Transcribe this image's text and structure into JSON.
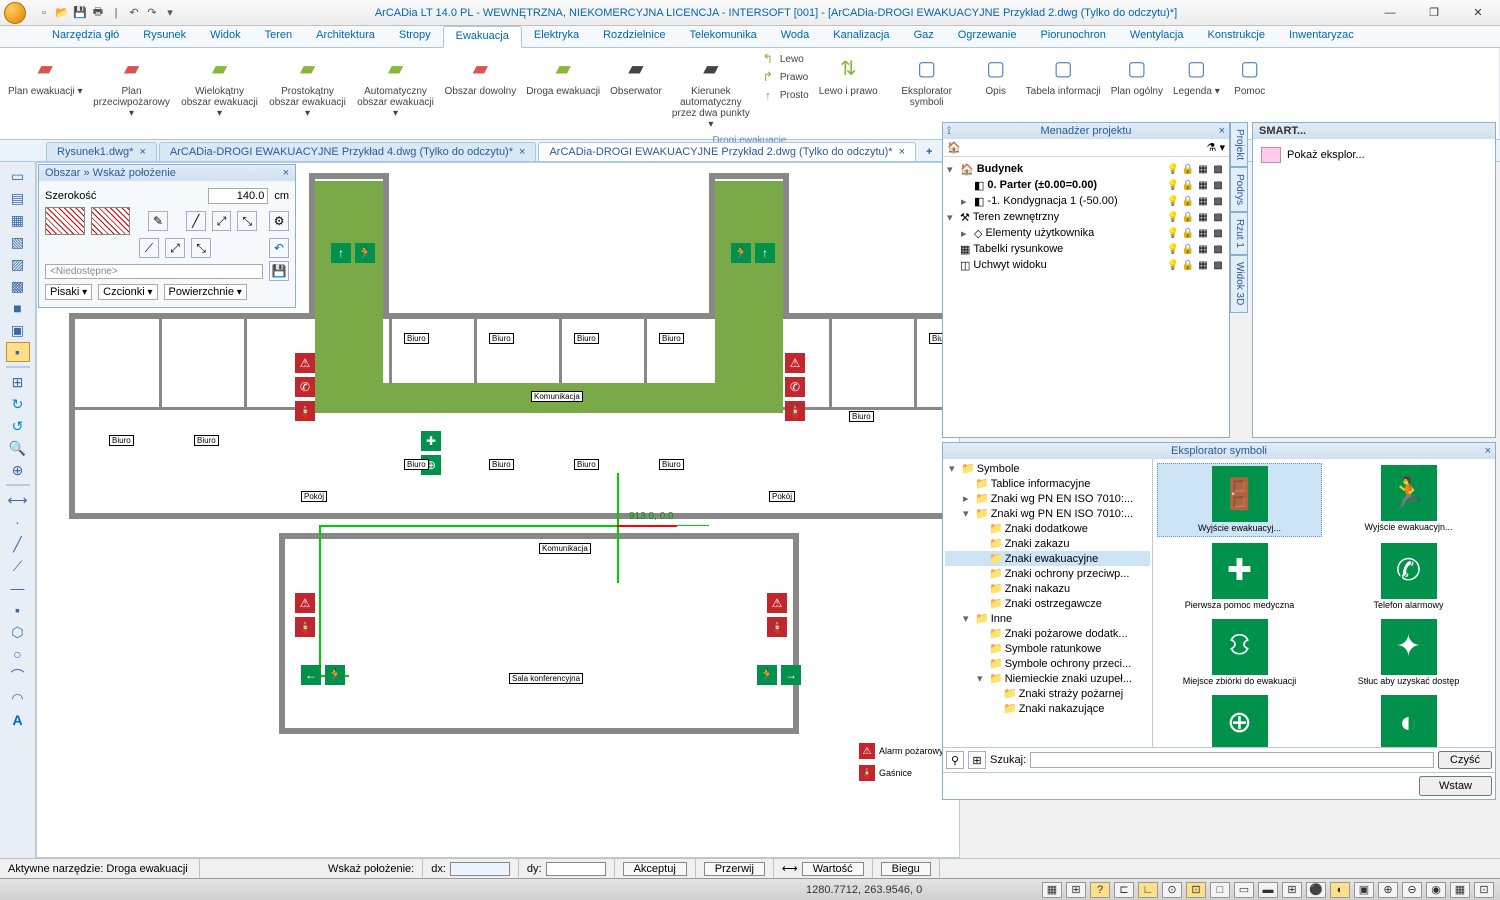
{
  "title": "ArCADia LT 14.0 PL - WEWNĘTRZNA, NIEKOMERCYJNA LICENCJA - INTERSOFT [001] - [ArCADia-DROGI EWAKUACYJNE Przykład 2.dwg (Tylko do odczytu)*]",
  "ribbon_tabs": [
    "Narzędzia głó",
    "Rysunek",
    "Widok",
    "Teren",
    "Architektura",
    "Stropy",
    "Ewakuacja",
    "Elektryka",
    "Rozdzielnice",
    "Telekomunika",
    "Woda",
    "Kanalizacja",
    "Gaz",
    "Ogrzewanie",
    "Piorunochron",
    "Wentylacja",
    "Konstrukcje",
    "Inwentaryzac"
  ],
  "ribbon_active": 6,
  "ribbon_group_label": "Drogi ewakuacje",
  "ribbon_buttons": [
    {
      "label": "Plan ewakuacji ▾",
      "color": "#d9534f"
    },
    {
      "label": "Plan przeciwpożarowy ▾",
      "color": "#d9534f"
    },
    {
      "label": "Wielokątny obszar ewakuacji ▾",
      "color": "#8ab73a"
    },
    {
      "label": "Prostokątny obszar ewakuacji ▾",
      "color": "#8ab73a"
    },
    {
      "label": "Automatyczny obszar ewakuacji ▾",
      "color": "#8ab73a"
    },
    {
      "label": "Obszar dowolny",
      "color": "#d9534f"
    },
    {
      "label": "Droga ewakuacji",
      "color": "#8ab73a"
    },
    {
      "label": "Obserwator",
      "color": "#444"
    },
    {
      "label": "Kierunek automatyczny przez dwa punkty ▾",
      "color": "#444"
    }
  ],
  "ribbon_dir": {
    "lewo": "Lewo",
    "prawo": "Prawo",
    "prosto": "Prosto",
    "lip": "Lewo i prawo"
  },
  "ribbon_right": [
    {
      "label": "Eksplorator symboli"
    },
    {
      "label": "Opis"
    },
    {
      "label": "Tabela informacji"
    },
    {
      "label": "Plan ogólny"
    },
    {
      "label": "Legenda ▾"
    },
    {
      "label": "Pomoc"
    }
  ],
  "doc_tabs": [
    {
      "label": "Rysunek1.dwg*",
      "active": false
    },
    {
      "label": "ArCADia-DROGI EWAKUACYJNE Przykład 4.dwg (Tylko do odczytu)*",
      "active": false
    },
    {
      "label": "ArCADia-DROGI EWAKUACYJNE Przykład 2.dwg (Tylko do odczytu)*",
      "active": true
    }
  ],
  "obszar": {
    "title": "Obszar » Wskaż położenie",
    "szerokosc_label": "Szerokość",
    "szerokosc_value": "140.0",
    "szerokosc_unit": "cm",
    "niedostepne": "<Niedostępne>",
    "pisaki": "Pisaki",
    "czcionki": "Czcionki",
    "powierzchnie": "Powierzchnie"
  },
  "plan": {
    "rooms": [
      "Biuro",
      "Biuro",
      "Biuro",
      "Biuro",
      "Biuro",
      "Biuro",
      "Biuro",
      "Biuro",
      "Biuro",
      "Biuro",
      "Biuro",
      "Biuro"
    ],
    "center_label": "Komunikacja",
    "pokoj": "Pokój",
    "sala": "Sala konferencyjna",
    "coords": "913.0, 0.0",
    "legend": {
      "alarm": "Alarm pożarowy",
      "gasnica": "Gaśnice"
    },
    "evac_color": "#7aa948",
    "sign_color": "#00924a"
  },
  "manager": {
    "title": "Menadżer projektu",
    "nodes": [
      {
        "indent": 0,
        "exp": "▾",
        "icon": "🏠",
        "label": "Budynek",
        "bold": true
      },
      {
        "indent": 1,
        "exp": "",
        "icon": "◧",
        "label": "0. Parter (±0.00=0.00)",
        "bold": true
      },
      {
        "indent": 1,
        "exp": "▸",
        "icon": "◧",
        "label": "-1. Kondygnacja 1 (-50.00)"
      },
      {
        "indent": 0,
        "exp": "▾",
        "icon": "⚒",
        "label": "Teren zewnętrzny"
      },
      {
        "indent": 1,
        "exp": "▸",
        "icon": "◇",
        "label": "Elementy użytkownika"
      },
      {
        "indent": 0,
        "exp": "",
        "icon": "▦",
        "label": "Tabelki rysunkowe"
      },
      {
        "indent": 0,
        "exp": "",
        "icon": "◫",
        "label": "Uchwyt widoku"
      }
    ]
  },
  "side_tabs": [
    "Projekt",
    "Podrys",
    "Rzut 1",
    "Widok 3D"
  ],
  "smart": {
    "title": "SMART...",
    "item": "Pokaż eksplor..."
  },
  "symex": {
    "title": "Eksplorator symboli",
    "tree": [
      {
        "indent": 0,
        "exp": "▾",
        "label": "Symbole"
      },
      {
        "indent": 1,
        "exp": "",
        "label": "Tablice informacyjne"
      },
      {
        "indent": 1,
        "exp": "▸",
        "label": "Znaki wg PN EN ISO 7010:..."
      },
      {
        "indent": 1,
        "exp": "▾",
        "label": "Znaki wg PN EN ISO 7010:..."
      },
      {
        "indent": 2,
        "exp": "",
        "label": "Znaki dodatkowe"
      },
      {
        "indent": 2,
        "exp": "",
        "label": "Znaki zakazu"
      },
      {
        "indent": 2,
        "exp": "",
        "label": "Znaki ewakuacyjne",
        "sel": true
      },
      {
        "indent": 2,
        "exp": "",
        "label": "Znaki ochrony przeciwp..."
      },
      {
        "indent": 2,
        "exp": "",
        "label": "Znaki nakazu"
      },
      {
        "indent": 2,
        "exp": "",
        "label": "Znaki ostrzegawcze"
      },
      {
        "indent": 1,
        "exp": "▾",
        "label": "Inne"
      },
      {
        "indent": 2,
        "exp": "",
        "label": "Znaki pożarowe dodatk..."
      },
      {
        "indent": 2,
        "exp": "",
        "label": "Symbole ratunkowe"
      },
      {
        "indent": 2,
        "exp": "",
        "label": "Symbole ochrony przeci..."
      },
      {
        "indent": 2,
        "exp": "▾",
        "label": "Niemieckie znaki uzupeł..."
      },
      {
        "indent": 3,
        "exp": "",
        "label": "Znaki straży pożarnej"
      },
      {
        "indent": 3,
        "exp": "",
        "label": "Znaki nakazujące"
      }
    ],
    "symbols": [
      {
        "glyph": "🚪",
        "label": "Wyjście ewakuacyj...",
        "sel": true
      },
      {
        "glyph": "🏃",
        "label": "Wyjście ewakuacyjn..."
      },
      {
        "glyph": "✚",
        "label": "Pierwsza pomoc medyczna"
      },
      {
        "glyph": "✆",
        "label": "Telefon alarmowy"
      },
      {
        "glyph": "⛻",
        "label": "Miejsce zbiórki do ewakuacji"
      },
      {
        "glyph": "✦",
        "label": "Stłuc aby uzyskać dostęp"
      },
      {
        "glyph": "⊕",
        "label": ""
      },
      {
        "glyph": "◐",
        "label": ""
      }
    ],
    "search_label": "Szukaj:",
    "clear": "Czyść",
    "insert": "Wstaw"
  },
  "cmdbar": {
    "tool": "Aktywne narzędzie: Droga ewakuacji",
    "wskaz": "Wskaż położenie:",
    "dx": "dx:",
    "dy": "dy:",
    "accept": "Akceptuj",
    "cancel": "Przerwij",
    "value": "Wartość",
    "polar": "Biegu"
  },
  "status": {
    "coords": "1280.7712, 263.9546, 0"
  }
}
